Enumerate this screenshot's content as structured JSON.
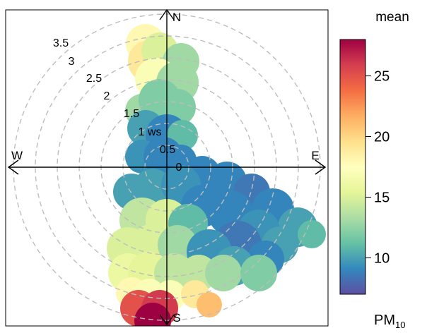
{
  "chart_data": {
    "type": "heatmap",
    "subtype": "polar",
    "legend_title": "mean",
    "legend_caption": "PM",
    "legend_caption_subscript": "10",
    "directions": [
      "N",
      "E",
      "S",
      "W"
    ],
    "radial_labels": [
      "0",
      "0.5",
      "1 ws",
      "1.5",
      "2",
      "2.5",
      "3",
      "3.5"
    ],
    "radial_ticks": [
      0,
      0.5,
      1,
      1.5,
      2,
      2.5,
      3,
      3.5
    ],
    "radial_max": 3.6,
    "colorbar_ticks": [
      10,
      15,
      20,
      25
    ],
    "colorbar_range": [
      7,
      28
    ],
    "colorscale": [
      "#5e4fa2",
      "#3288bd",
      "#66c2a5",
      "#abdda4",
      "#e6f598",
      "#ffffbf",
      "#fee08b",
      "#fdae61",
      "#f46d43",
      "#d53e4f",
      "#9e0142"
    ],
    "grid": true
  }
}
